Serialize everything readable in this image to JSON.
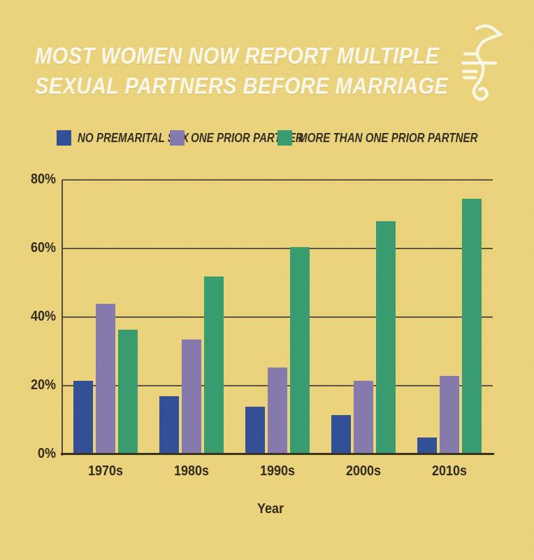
{
  "page": {
    "background_color": "#eed67f",
    "texture": "mottled-paper-grain"
  },
  "header": {
    "title_line1": "MOST WOMEN NOW REPORT MULTIPLE",
    "title_line2": "SEXUAL PARTNERS BEFORE MARRIAGE",
    "title_color": "#fffef6",
    "logo_icon": "seahorse-line-art",
    "logo_color": "#fffdf2"
  },
  "legend": {
    "items": [
      {
        "label": "NO PREMARITAL SEX",
        "color": "#27489a"
      },
      {
        "label": "ONE PRIOR PARTNER",
        "color": "#8076b3"
      },
      {
        "label": "MORE THAN ONE PRIOR PARTNER",
        "color": "#2d9b71"
      }
    ]
  },
  "chart_data": {
    "type": "bar",
    "title": "MOST WOMEN NOW REPORT MULTIPLE SEXUAL PARTNERS BEFORE MARRIAGE",
    "categories": [
      "1970s",
      "1980s",
      "1990s",
      "2000s",
      "2010s"
    ],
    "series": [
      {
        "name": "NO PREMARITAL SEX",
        "color": "#27489a",
        "values": [
          21,
          16.5,
          13.5,
          11,
          4.5
        ]
      },
      {
        "name": "ONE PRIOR PARTNER",
        "color": "#8076b3",
        "values": [
          43.5,
          33,
          25,
          21,
          22.5
        ]
      },
      {
        "name": "MORE THAN ONE PRIOR PARTNER",
        "color": "#2d9b71",
        "values": [
          36,
          51.5,
          60,
          67.5,
          74
        ]
      }
    ],
    "xlabel": "Year",
    "ylabel": "",
    "ylim": [
      0,
      80
    ],
    "ytick_step": 20,
    "yticks": [
      "0%",
      "20%",
      "40%",
      "60%",
      "80%"
    ],
    "grid": true,
    "legend_position": "top",
    "axis_color": "#2c2818",
    "gridline_color": "#554e3b"
  }
}
